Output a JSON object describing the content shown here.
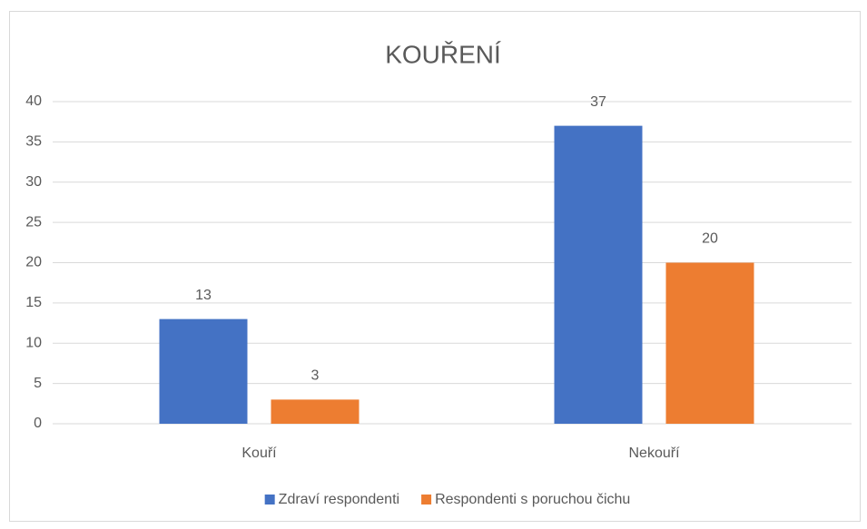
{
  "chart_data": {
    "type": "bar",
    "title": "KOUŘENÍ",
    "categories": [
      "Kouří",
      "Nekouří"
    ],
    "series": [
      {
        "name": "Zdraví respondenti",
        "color": "#4472c4",
        "values": [
          13,
          37
        ]
      },
      {
        "name": "Respondenti s poruchou čichu",
        "color": "#ed7d31",
        "values": [
          3,
          20
        ]
      }
    ],
    "ylim": [
      0,
      40
    ],
    "yticks": [
      0,
      5,
      10,
      15,
      20,
      25,
      30,
      35,
      40
    ],
    "grid": true,
    "legend": "bottom"
  }
}
